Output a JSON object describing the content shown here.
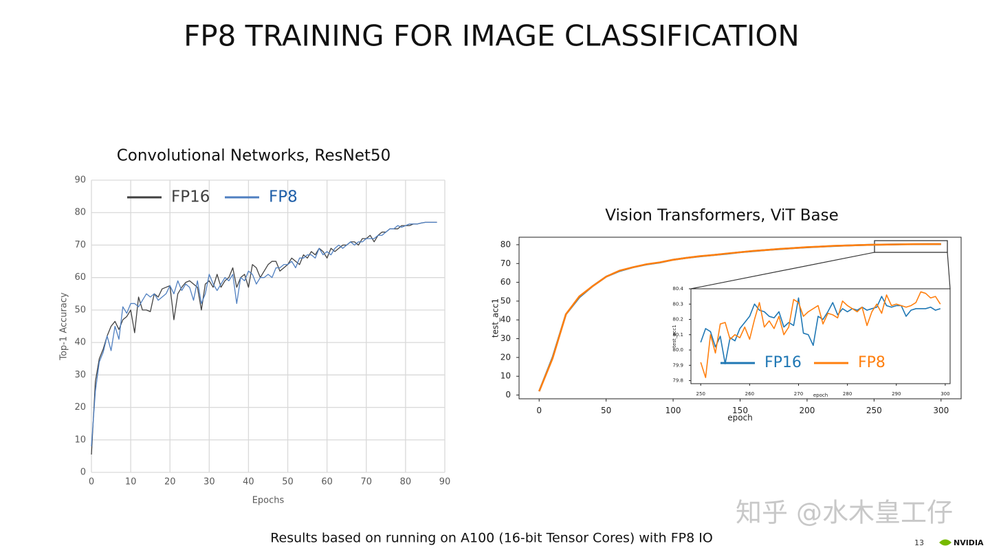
{
  "slide": {
    "title": "FP8 TRAINING FOR IMAGE CLASSIFICATION",
    "footnote": "Results based on running on A100 (16-bit Tensor Cores) with FP8 IO",
    "page_number": "13",
    "logo": "NVIDIA",
    "watermark": "知乎 @水木皇工仔"
  },
  "chart_data": [
    {
      "type": "line",
      "title": "Convolutional Networks, ResNet50",
      "x_label": "Epochs",
      "y_label": "Top-1 Accuracy",
      "x": [
        0,
        1,
        2,
        3,
        4,
        5,
        6,
        7,
        8,
        9,
        10,
        11,
        12,
        13,
        14,
        15,
        16,
        17,
        18,
        19,
        20,
        21,
        22,
        23,
        24,
        25,
        26,
        27,
        28,
        29,
        30,
        31,
        32,
        33,
        34,
        35,
        36,
        37,
        38,
        39,
        40,
        41,
        42,
        43,
        44,
        45,
        46,
        47,
        48,
        49,
        50,
        51,
        52,
        53,
        54,
        55,
        56,
        57,
        58,
        59,
        60,
        61,
        62,
        63,
        64,
        65,
        66,
        67,
        68,
        69,
        70,
        71,
        72,
        73,
        74,
        75,
        76,
        77,
        78,
        79,
        80,
        81,
        82,
        83,
        84,
        85,
        86,
        87,
        88
      ],
      "series": [
        {
          "name": "FP16",
          "color": "#404040",
          "values": [
            5.5,
            28,
            35,
            38,
            42,
            45,
            46.5,
            44,
            47,
            48,
            50,
            43,
            54,
            50,
            50,
            49.5,
            55,
            54,
            56.5,
            57,
            57.5,
            47,
            55,
            57,
            58.5,
            59,
            58,
            57,
            50,
            58,
            59,
            57,
            61,
            57,
            59,
            60,
            63,
            57,
            60,
            61,
            57,
            64,
            63,
            60,
            62,
            64,
            65,
            65,
            62,
            63,
            64,
            66,
            65,
            64,
            67,
            66,
            68,
            67,
            69,
            68,
            66,
            69,
            68,
            69,
            70,
            70,
            71,
            71,
            70,
            72,
            72,
            73,
            71,
            73,
            74,
            74,
            75,
            75,
            75,
            76,
            76,
            76,
            76.5,
            76.5,
            76.8,
            77,
            77,
            77,
            77
          ]
        },
        {
          "name": "FP8",
          "color": "#4f7fc0",
          "values": [
            8,
            25,
            34,
            37,
            42,
            37.5,
            45,
            41,
            51,
            49,
            52,
            52,
            51,
            53,
            55,
            54,
            55,
            53,
            54,
            55,
            57.5,
            55,
            59,
            56,
            58,
            57,
            53,
            59,
            52,
            55,
            61,
            58,
            56,
            58,
            60,
            59,
            61,
            52,
            60,
            59,
            62,
            61,
            58,
            60,
            60,
            61,
            60,
            63,
            63,
            64,
            64,
            65,
            63,
            66,
            66,
            67,
            67,
            66,
            69,
            67,
            68,
            67,
            69,
            70,
            69,
            70,
            71,
            70,
            71,
            71,
            72,
            72,
            72,
            73,
            73,
            74,
            75,
            75,
            76,
            75.5,
            76,
            76.5,
            76.5,
            76.5,
            76.8,
            77,
            77,
            77,
            77
          ]
        }
      ],
      "xlim": [
        0,
        90
      ],
      "xticks": [
        0,
        10,
        20,
        30,
        40,
        50,
        60,
        70,
        80,
        90
      ],
      "ylim": [
        0,
        90
      ],
      "yticks": [
        0,
        10,
        20,
        30,
        40,
        50,
        60,
        70,
        80,
        90
      ],
      "grid": true,
      "legend": "upper left"
    },
    {
      "type": "line",
      "title": "Vision Transformers, ViT Base",
      "x_label": "epoch",
      "y_label": "test_acc1",
      "x": [
        0,
        10,
        20,
        30,
        40,
        50,
        60,
        70,
        80,
        90,
        100,
        110,
        120,
        130,
        140,
        150,
        160,
        170,
        180,
        190,
        200,
        210,
        220,
        230,
        240,
        250,
        260,
        270,
        280,
        290,
        300
      ],
      "series": [
        {
          "color": "#1f77b4",
          "values": [
            2,
            20,
            43,
            52,
            58,
            63,
            66,
            68,
            69.5,
            70.5,
            72,
            73,
            73.8,
            74.5,
            75.2,
            76,
            76.6,
            77.2,
            77.7,
            78.2,
            78.6,
            79,
            79.3,
            79.6,
            79.8,
            80,
            80.1,
            80.2,
            80.25,
            80.3,
            80.3
          ]
        },
        {
          "color": "#ff7f0e",
          "values": [
            2,
            19.5,
            43,
            52.5,
            58,
            63,
            66.2,
            68,
            69.6,
            70.6,
            72,
            73,
            73.9,
            74.5,
            75.3,
            76,
            76.7,
            77.2,
            77.8,
            78.2,
            78.7,
            79,
            79.4,
            79.6,
            79.8,
            80,
            80.1,
            80.2,
            80.3,
            80.3,
            80.35
          ]
        }
      ],
      "xlim": [
        -15,
        315
      ],
      "xticks": [
        0,
        50,
        100,
        150,
        200,
        250,
        300
      ],
      "ylim": [
        -2,
        84
      ],
      "yticks": [
        0,
        10,
        20,
        30,
        40,
        50,
        60,
        70,
        80
      ],
      "grid": false
    },
    {
      "type": "line",
      "x_label": "epoch",
      "y_label": "test_acc1",
      "x": [
        250,
        251,
        252,
        253,
        254,
        255,
        256,
        257,
        258,
        259,
        260,
        261,
        262,
        263,
        264,
        265,
        266,
        267,
        268,
        269,
        270,
        271,
        272,
        273,
        274,
        275,
        276,
        277,
        278,
        279,
        280,
        281,
        282,
        283,
        284,
        285,
        286,
        287,
        288,
        289,
        290,
        291,
        292,
        293,
        294,
        295,
        296,
        297,
        298,
        299
      ],
      "series": [
        {
          "name": "FP16",
          "color": "#1f77b4",
          "values": [
            80.05,
            80.14,
            80.12,
            80.02,
            80.09,
            79.91,
            80.08,
            80.06,
            80.14,
            80.18,
            80.22,
            80.3,
            80.26,
            80.25,
            80.22,
            80.21,
            80.25,
            80.15,
            80.18,
            80.16,
            80.34,
            80.11,
            80.1,
            80.03,
            80.22,
            80.2,
            80.25,
            80.31,
            80.23,
            80.27,
            80.25,
            80.27,
            80.26,
            80.28,
            80.26,
            80.27,
            80.28,
            80.35,
            80.29,
            80.28,
            80.29,
            80.29,
            80.22,
            80.26,
            80.27,
            80.27,
            80.27,
            80.28,
            80.26,
            80.27
          ]
        },
        {
          "name": "FP8",
          "color": "#ff7f0e",
          "values": [
            79.92,
            79.82,
            80.1,
            79.98,
            80.17,
            80.18,
            80.07,
            80.1,
            80.08,
            80.15,
            80.07,
            80.2,
            80.31,
            80.15,
            80.19,
            80.14,
            80.22,
            80.1,
            80.15,
            80.33,
            80.31,
            80.22,
            80.25,
            80.27,
            80.29,
            80.17,
            80.24,
            80.23,
            80.21,
            80.32,
            80.29,
            80.27,
            80.25,
            80.28,
            80.16,
            80.25,
            80.3,
            80.24,
            80.36,
            80.29,
            80.3,
            80.29,
            80.28,
            80.29,
            80.31,
            80.38,
            80.37,
            80.34,
            80.35,
            80.3
          ]
        }
      ],
      "xlim": [
        248,
        301
      ],
      "xticks": [
        250,
        260,
        270,
        280,
        290,
        300
      ],
      "ylim": [
        79.78,
        80.4
      ],
      "yticks": [
        79.8,
        79.9,
        {
          "value": 80,
          "label": "80.0"
        },
        80.1,
        80.2,
        80.3,
        80.4
      ],
      "grid": false,
      "legend": "lower right"
    }
  ]
}
